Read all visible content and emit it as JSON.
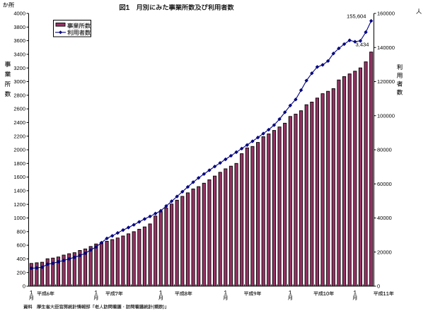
{
  "title": "図1　月別にみた事業所数及び利用者数",
  "units": {
    "left": "か所",
    "right": "人"
  },
  "axis_titles": {
    "left": "事業所数",
    "right": "利用者数"
  },
  "legend": {
    "items": [
      {
        "label": "事業所数",
        "marker": "bar-swatch"
      },
      {
        "label": "利用者数",
        "marker": "line-diamond"
      }
    ]
  },
  "source_note": "資料　厚生省大臣官房統計情報部「老人訪問看護・訪問看護統計(概数)」",
  "colors": {
    "bar_fill": "#993366",
    "bar_stroke": "#000000",
    "line": "#000080",
    "axis": "#000000",
    "background": "#ffffff",
    "text": "#000000"
  },
  "chart_data": {
    "type": "combo-bar-line",
    "categories": [
      "平成6年1月",
      "平成6年2月",
      "平成6年3月",
      "平成6年4月",
      "平成6年5月",
      "平成6年6月",
      "平成6年7月",
      "平成6年8月",
      "平成6年9月",
      "平成6年10月",
      "平成6年11月",
      "平成6年12月",
      "平成7年1月",
      "平成7年2月",
      "平成7年3月",
      "平成7年4月",
      "平成7年5月",
      "平成7年6月",
      "平成7年7月",
      "平成7年8月",
      "平成7年9月",
      "平成7年10月",
      "平成7年11月",
      "平成7年12月",
      "平成8年1月",
      "平成8年2月",
      "平成8年3月",
      "平成8年4月",
      "平成8年5月",
      "平成8年6月",
      "平成8年7月",
      "平成8年8月",
      "平成8年9月",
      "平成8年10月",
      "平成8年11月",
      "平成8年12月",
      "平成9年1月",
      "平成9年2月",
      "平成9年3月",
      "平成9年4月",
      "平成9年5月",
      "平成9年6月",
      "平成9年7月",
      "平成9年8月",
      "平成9年9月",
      "平成9年10月",
      "平成9年11月",
      "平成9年12月",
      "平成10年1月",
      "平成10年2月",
      "平成10年3月",
      "平成10年4月",
      "平成10年5月",
      "平成10年6月",
      "平成10年7月",
      "平成10年8月",
      "平成10年9月",
      "平成10年10月",
      "平成10年11月",
      "平成10年12月",
      "平成11年1月",
      "平成11年2月",
      "平成11年3月",
      "平成11年4月"
    ],
    "series": [
      {
        "name": "事業所数",
        "type": "bar",
        "axis": "left",
        "values": [
          334,
          343,
          351,
          402,
          412,
          428,
          456,
          476,
          491,
          524,
          546,
          582,
          619,
          641,
          659,
          683,
          707,
          736,
          768,
          799,
          835,
          869,
          913,
          1029,
          1091,
          1148,
          1205,
          1261,
          1317,
          1369,
          1426,
          1460,
          1510,
          1560,
          1615,
          1670,
          1721,
          1760,
          1800,
          1943,
          2028,
          2049,
          2108,
          2192,
          2233,
          2284,
          2335,
          2390,
          2489,
          2523,
          2573,
          2661,
          2700,
          2759,
          2823,
          2858,
          2897,
          3024,
          3074,
          3113,
          3153,
          3201,
          3290,
          3434
        ]
      },
      {
        "name": "利用者数",
        "type": "line",
        "axis": "right",
        "values": [
          10500,
          10700,
          11100,
          12900,
          13400,
          14300,
          15100,
          16000,
          16900,
          18000,
          19300,
          21200,
          23000,
          25500,
          28000,
          29500,
          31200,
          32900,
          34400,
          36000,
          37700,
          39400,
          40900,
          42600,
          44200,
          47000,
          49800,
          52600,
          55400,
          58200,
          61000,
          63500,
          65800,
          68000,
          70200,
          72300,
          74400,
          76500,
          78600,
          80700,
          82800,
          85000,
          87200,
          89500,
          91800,
          94500,
          98000,
          102000,
          106000,
          109500,
          115000,
          120600,
          124900,
          128600,
          129800,
          132100,
          136500,
          139500,
          142000,
          144200,
          143400,
          143900,
          149000,
          155604
        ]
      }
    ],
    "x_axis": {
      "month_tick_top": "1",
      "month_tick_bottom": "月",
      "year_labels": [
        "平成6年",
        "平成7年",
        "平成8年",
        "平成9年",
        "平成10年",
        "平成11年"
      ]
    },
    "y_axis_left": {
      "min": 0,
      "max": 4000,
      "step": 200,
      "labels": [
        "0",
        "200",
        "400",
        "600",
        "800",
        "1000",
        "1200",
        "1400",
        "1600",
        "1800",
        "2000",
        "2200",
        "2400",
        "2600",
        "2800",
        "3000",
        "3200",
        "3400",
        "3600",
        "3800",
        "4000"
      ]
    },
    "y_axis_right": {
      "min": 0,
      "max": 160000,
      "step": 20000,
      "labels": [
        "0",
        "20000",
        "40000",
        "60000",
        "80000",
        "100000",
        "120000",
        "140000",
        "160000"
      ]
    },
    "annotations": [
      {
        "text": "155,604",
        "series": "利用者数",
        "category": "平成11年4月"
      },
      {
        "text": "3,434",
        "series": "事業所数",
        "category": "平成11年4月"
      }
    ],
    "legend_position": "top-left-inside",
    "grid": "none"
  }
}
